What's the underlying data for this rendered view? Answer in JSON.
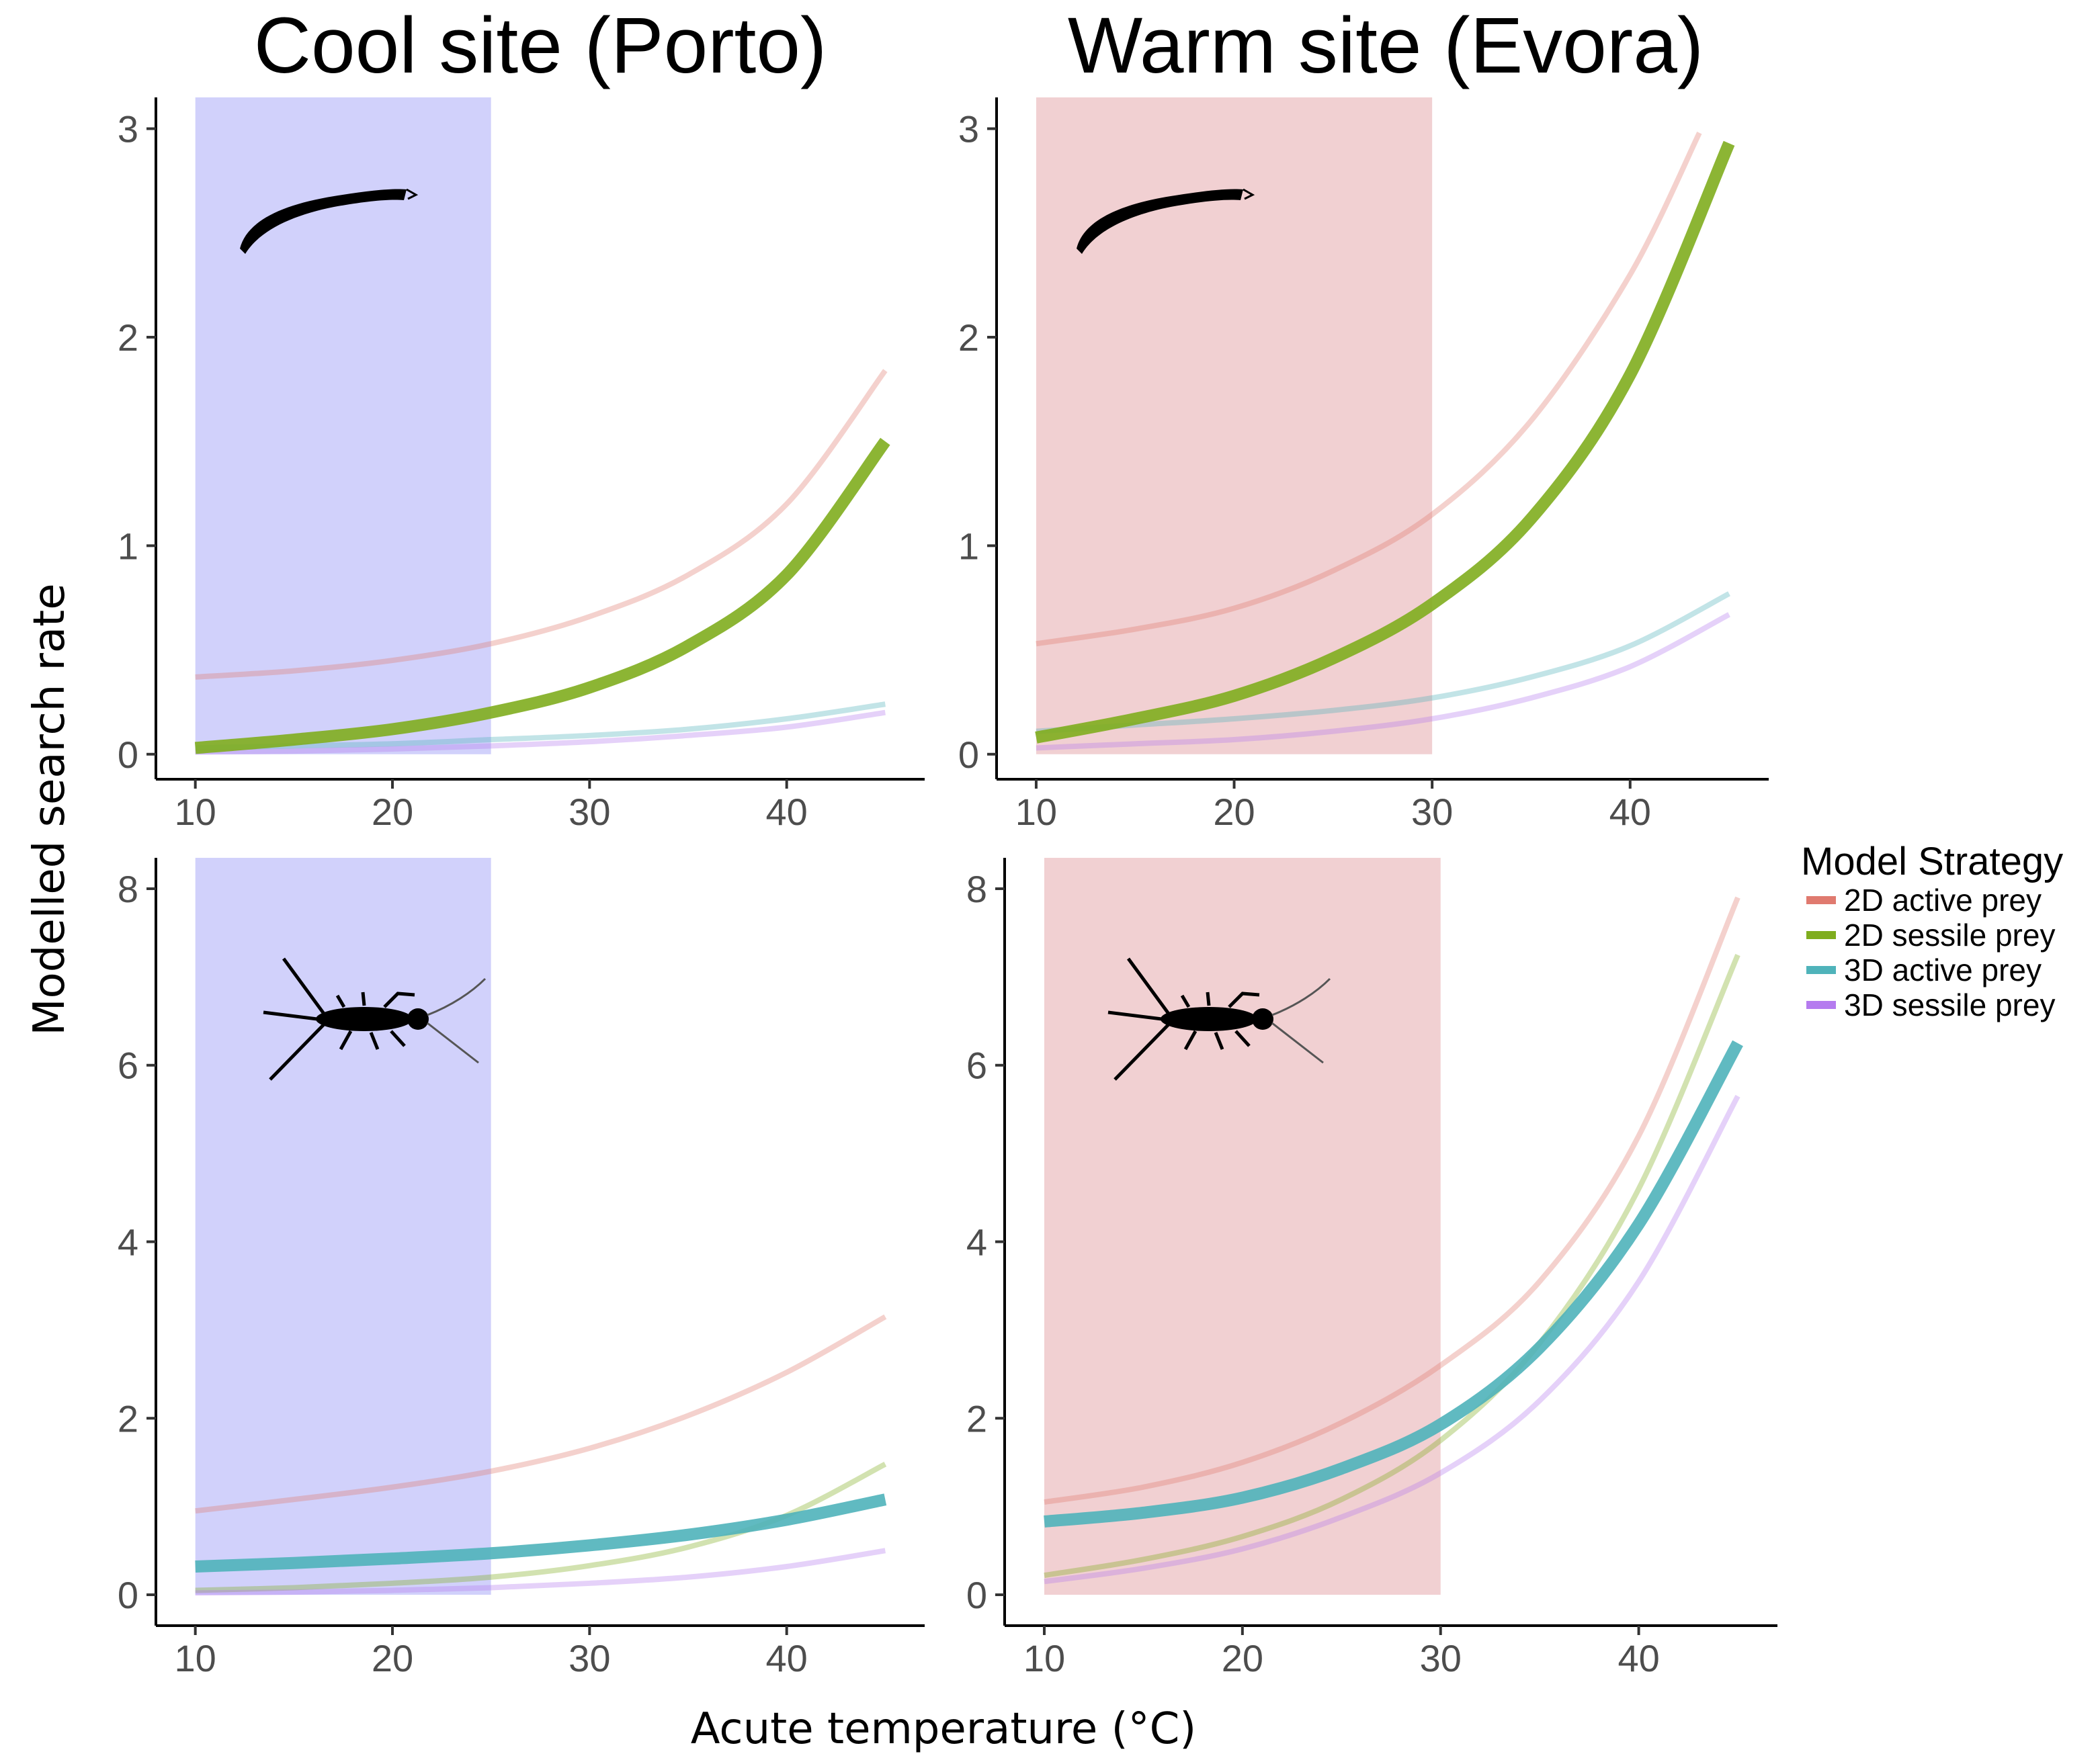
{
  "column_titles": [
    "Cool site (Porto)",
    "Warm site (Evora)"
  ],
  "xlabel": "Acute temperature (°C)",
  "ylabel": "Modelled search rate",
  "legend": {
    "title": "Model Strategy",
    "placement": "right",
    "entries": [
      {
        "label": "2D active prey",
        "color": "#E07A6F"
      },
      {
        "label": "2D sessile prey",
        "color": "#7FAD1E"
      },
      {
        "label": "3D active prey",
        "color": "#4FB3BA"
      },
      {
        "label": "3D sessile prey",
        "color": "#B57BEF"
      }
    ]
  },
  "icons": {
    "top_row": "larva-silhouette-icon",
    "bottom_row": "water-bug-silhouette-icon"
  },
  "shade_colors": {
    "cool": "#C9C9FA",
    "warm": "#F1D0D2"
  },
  "chart_data": [
    {
      "panel": "top-left",
      "type": "line",
      "xlim": [
        8,
        47
      ],
      "ylim": [
        -0.12,
        3.15
      ],
      "xticks": [
        "10",
        "20",
        "30",
        "40"
      ],
      "yticks": [
        "0",
        "1",
        "2",
        "3"
      ],
      "grid": false,
      "shaded_range": [
        10,
        25
      ],
      "shade": "cool",
      "highlight": "2D sessile prey",
      "series": [
        {
          "name": "2D active prey",
          "color": "#E07A6F",
          "x": [
            10,
            15,
            20,
            25,
            30,
            35,
            40,
            45
          ],
          "y": [
            0.37,
            0.4,
            0.45,
            0.53,
            0.66,
            0.86,
            1.2,
            1.84
          ]
        },
        {
          "name": "2D sessile prey",
          "color": "#7FAD1E",
          "x": [
            10,
            15,
            20,
            25,
            30,
            35,
            40,
            45
          ],
          "y": [
            0.03,
            0.07,
            0.12,
            0.2,
            0.32,
            0.52,
            0.86,
            1.5
          ]
        },
        {
          "name": "3D active prey",
          "color": "#4FB3BA",
          "x": [
            10,
            15,
            20,
            25,
            30,
            35,
            40,
            45
          ],
          "y": [
            0.03,
            0.04,
            0.05,
            0.07,
            0.09,
            0.12,
            0.17,
            0.24
          ]
        },
        {
          "name": "3D sessile prey",
          "color": "#B57BEF",
          "x": [
            10,
            15,
            20,
            25,
            30,
            35,
            40,
            45
          ],
          "y": [
            0.01,
            0.015,
            0.025,
            0.04,
            0.06,
            0.09,
            0.13,
            0.2
          ]
        }
      ]
    },
    {
      "panel": "top-right",
      "type": "line",
      "xlim": [
        8,
        47
      ],
      "ylim": [
        -0.12,
        3.15
      ],
      "xticks": [
        "10",
        "20",
        "30",
        "40"
      ],
      "yticks": [
        "0",
        "1",
        "2",
        "3"
      ],
      "grid": false,
      "shaded_range": [
        10,
        30
      ],
      "shade": "warm",
      "highlight": "2D sessile prey",
      "series": [
        {
          "name": "2D active prey",
          "color": "#E07A6F",
          "x": [
            10,
            15,
            20,
            25,
            30,
            35,
            40,
            43.5
          ],
          "y": [
            0.53,
            0.6,
            0.7,
            0.88,
            1.15,
            1.6,
            2.3,
            2.98
          ]
        },
        {
          "name": "2D sessile prey",
          "color": "#7FAD1E",
          "x": [
            10,
            15,
            20,
            25,
            30,
            35,
            40,
            45
          ],
          "y": [
            0.08,
            0.17,
            0.28,
            0.46,
            0.72,
            1.13,
            1.82,
            2.93
          ]
        },
        {
          "name": "3D active prey",
          "color": "#4FB3BA",
          "x": [
            10,
            15,
            20,
            25,
            30,
            35,
            40,
            45
          ],
          "y": [
            0.11,
            0.14,
            0.17,
            0.21,
            0.27,
            0.37,
            0.52,
            0.77
          ]
        },
        {
          "name": "3D sessile prey",
          "color": "#B57BEF",
          "x": [
            10,
            15,
            20,
            25,
            30,
            35,
            40,
            45
          ],
          "y": [
            0.03,
            0.05,
            0.07,
            0.11,
            0.17,
            0.27,
            0.42,
            0.67
          ]
        }
      ]
    },
    {
      "panel": "bottom-left",
      "type": "line",
      "xlim": [
        8,
        47
      ],
      "ylim": [
        -0.35,
        8.35
      ],
      "xticks": [
        "10",
        "20",
        "30",
        "40"
      ],
      "yticks": [
        "0",
        "2",
        "4",
        "6",
        "8"
      ],
      "grid": false,
      "shaded_range": [
        10,
        25
      ],
      "shade": "cool",
      "highlight": "3D active prey",
      "series": [
        {
          "name": "2D active prey",
          "color": "#E07A6F",
          "x": [
            10,
            15,
            20,
            25,
            30,
            35,
            40,
            45
          ],
          "y": [
            0.95,
            1.08,
            1.22,
            1.4,
            1.66,
            2.03,
            2.52,
            3.15
          ]
        },
        {
          "name": "2D sessile prey",
          "color": "#7FAD1E",
          "x": [
            10,
            15,
            20,
            25,
            30,
            35,
            40,
            45
          ],
          "y": [
            0.05,
            0.08,
            0.13,
            0.2,
            0.33,
            0.54,
            0.9,
            1.48
          ]
        },
        {
          "name": "3D active prey",
          "color": "#4FB3BA",
          "x": [
            10,
            15,
            20,
            25,
            30,
            35,
            40,
            45
          ],
          "y": [
            0.32,
            0.36,
            0.41,
            0.47,
            0.56,
            0.68,
            0.85,
            1.08
          ]
        },
        {
          "name": "3D sessile prey",
          "color": "#B57BEF",
          "x": [
            10,
            15,
            20,
            25,
            30,
            35,
            40,
            45
          ],
          "y": [
            0.02,
            0.03,
            0.05,
            0.08,
            0.13,
            0.2,
            0.32,
            0.5
          ]
        }
      ]
    },
    {
      "panel": "bottom-right",
      "type": "line",
      "xlim": [
        8,
        47
      ],
      "ylim": [
        -0.35,
        8.35
      ],
      "xticks": [
        "10",
        "20",
        "30",
        "40"
      ],
      "yticks": [
        "0",
        "2",
        "4",
        "6",
        "8"
      ],
      "grid": false,
      "shaded_range": [
        10,
        30
      ],
      "shade": "warm",
      "highlight": "3D active prey",
      "series": [
        {
          "name": "2D active prey",
          "color": "#E07A6F",
          "x": [
            10,
            15,
            20,
            25,
            30,
            35,
            40,
            45
          ],
          "y": [
            1.05,
            1.22,
            1.5,
            1.95,
            2.6,
            3.55,
            5.2,
            7.9
          ]
        },
        {
          "name": "2D sessile prey",
          "color": "#7FAD1E",
          "x": [
            10,
            15,
            20,
            25,
            30,
            35,
            40,
            45
          ],
          "y": [
            0.22,
            0.4,
            0.66,
            1.08,
            1.75,
            2.85,
            4.6,
            7.25
          ]
        },
        {
          "name": "3D active prey",
          "color": "#4FB3BA",
          "x": [
            10,
            15,
            20,
            25,
            30,
            35,
            40,
            45
          ],
          "y": [
            0.83,
            0.93,
            1.1,
            1.43,
            1.93,
            2.8,
            4.2,
            6.25
          ]
        },
        {
          "name": "3D sessile prey",
          "color": "#B57BEF",
          "x": [
            10,
            15,
            20,
            25,
            30,
            35,
            40,
            45
          ],
          "y": [
            0.15,
            0.3,
            0.52,
            0.88,
            1.38,
            2.2,
            3.55,
            5.65
          ]
        }
      ]
    }
  ]
}
